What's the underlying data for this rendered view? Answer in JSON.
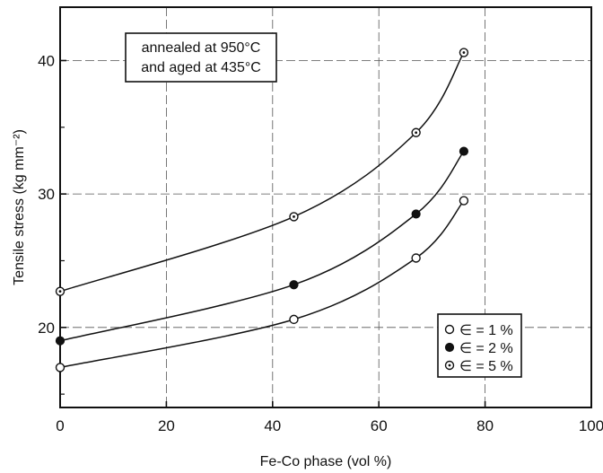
{
  "chart_data": {
    "type": "scatter",
    "xlabel": "Fe-Co phase (vol %)",
    "ylabel": "Tensile stress (kg mm⁻²)",
    "xlim": [
      0,
      100
    ],
    "ylim": [
      14,
      44
    ],
    "x_ticks": [
      0,
      20,
      40,
      60,
      80,
      100
    ],
    "x_tick_labels": [
      "0",
      "20",
      "40",
      "60",
      "80",
      "100"
    ],
    "y_ticks": [
      20,
      30,
      40
    ],
    "y_tick_labels": [
      "20",
      "30",
      "40"
    ],
    "grid": true,
    "annotation": [
      "annealed at 950°C",
      "and aged at 435°C"
    ],
    "legend_position": "lower-right",
    "series": [
      {
        "name": "∈ = 1 %",
        "marker": "open-circle",
        "x": [
          0,
          44,
          67,
          76
        ],
        "y": [
          17.0,
          20.6,
          25.2,
          29.5
        ]
      },
      {
        "name": "∈ = 2 %",
        "marker": "filled-circle",
        "x": [
          0,
          44,
          67,
          76
        ],
        "y": [
          19.0,
          23.2,
          28.5,
          33.2
        ]
      },
      {
        "name": "∈ = 5 %",
        "marker": "dotted-circle",
        "x": [
          0,
          44,
          67,
          76
        ],
        "y": [
          22.7,
          28.3,
          34.6,
          40.6
        ]
      }
    ]
  }
}
